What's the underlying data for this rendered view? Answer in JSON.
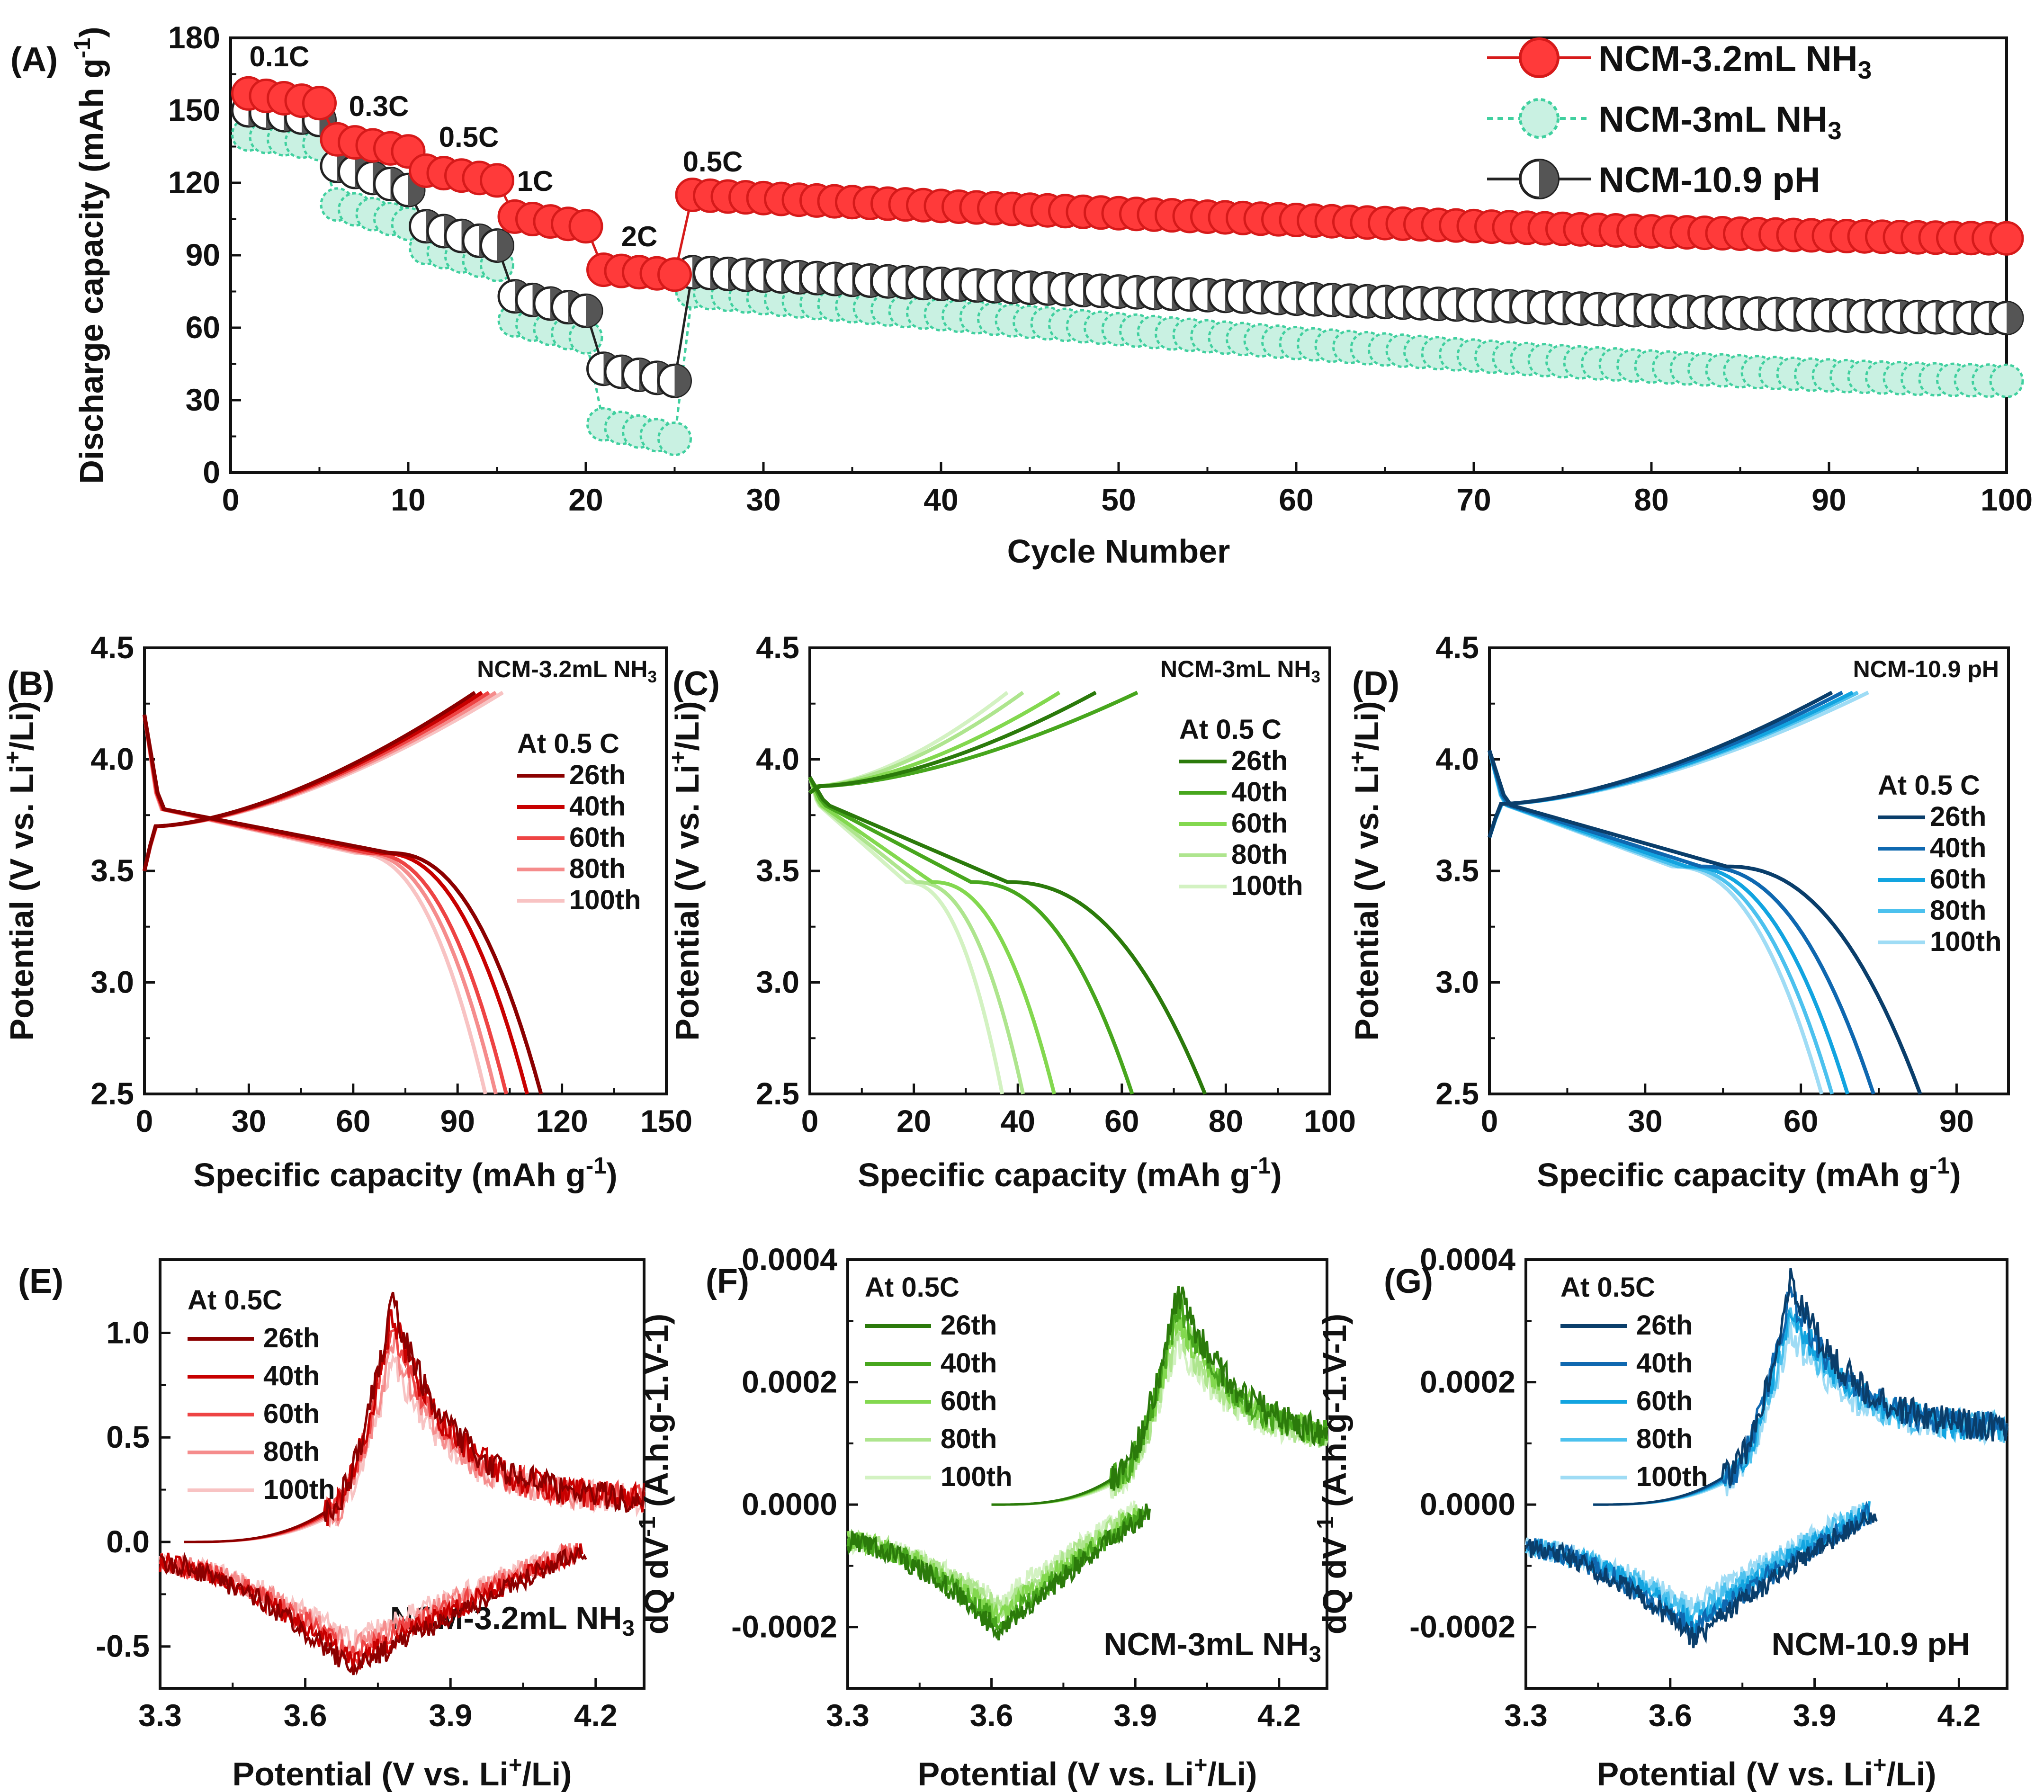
{
  "colors": {
    "red": [
      "#8b0000",
      "#c80000",
      "#ee4444",
      "#f58c8c",
      "#f8c3c3"
    ],
    "green": [
      "#2b7a0b",
      "#47a61d",
      "#83d84f",
      "#aee58e",
      "#d3f2c2"
    ],
    "blue": [
      "#0a3e6b",
      "#0f68b0",
      "#12a4e0",
      "#4cc1ee",
      "#9fdcf5"
    ],
    "panelA": {
      "s1": "#ff3a3a",
      "s1_edge": "#d61a1a",
      "s2": "#40d09f",
      "s3": "#555555"
    }
  },
  "chart_data": [
    {
      "id": "A",
      "panel_label": "(A)",
      "type": "scatter-line",
      "xlabel": "Cycle Number",
      "ylabel": "Discharge capacity (mAh g",
      "ylabel_sup": "-1",
      "ylabel_end": ")",
      "xlim": [
        0,
        100
      ],
      "ylim": [
        0,
        180
      ],
      "xticks": [
        "0",
        "10",
        "20",
        "30",
        "40",
        "50",
        "60",
        "70",
        "80",
        "90",
        "100"
      ],
      "yticks": [
        "0",
        "30",
        "60",
        "90",
        "120",
        "150",
        "180"
      ],
      "rate_labels": [
        "0.1C",
        "0.3C",
        "0.5C",
        "1C",
        "2C",
        "0.5C"
      ],
      "series": [
        {
          "name": "NCM-3.2mL NH",
          "name_sub": "3",
          "style": "filled",
          "rate_segments": [
            [
              157,
              153
            ],
            [
              138,
              133
            ],
            [
              125,
              121
            ],
            [
              106,
              102
            ],
            [
              84,
              82
            ]
          ],
          "tail": [
            115,
            97
          ]
        },
        {
          "name": "NCM-3mL NH",
          "name_sub": "3",
          "style": "hatched",
          "rate_segments": [
            [
              140,
              136
            ],
            [
              111,
              103
            ],
            [
              93,
              86
            ],
            [
              63,
              56
            ],
            [
              20,
              14
            ]
          ],
          "tail": [
            75,
            38
          ]
        },
        {
          "name": "NCM-10.9 pH",
          "name_sub": "",
          "style": "half",
          "rate_segments": [
            [
              150,
              146
            ],
            [
              127,
              117
            ],
            [
              102,
              94
            ],
            [
              73,
              67
            ],
            [
              43,
              38
            ]
          ],
          "tail": [
            83,
            64
          ]
        }
      ]
    },
    {
      "id": "B",
      "panel_label": "(B)",
      "type": "line",
      "title": "NCM-3.2mL NH",
      "title_sub": "3",
      "xlabel": "Specific capacity (mAh g",
      "xlabel_sup": "-1",
      "xlabel_end": ")",
      "ylabel": "Potential (V vs. Li",
      "ylabel_sup": "+",
      "ylabel_end": "/Li)",
      "xlim": [
        0,
        150
      ],
      "ylim": [
        2.5,
        4.5
      ],
      "xticks": [
        "0",
        "30",
        "60",
        "90",
        "120",
        "150"
      ],
      "yticks": [
        "2.5",
        "3.0",
        "3.5",
        "4.0",
        "4.5"
      ],
      "legend_title": "At 0.5 C",
      "series": [
        {
          "name": "26th",
          "charge_cap": 95,
          "discharge_cap": 114
        },
        {
          "name": "40th",
          "charge_cap": 97,
          "discharge_cap": 110
        },
        {
          "name": "60th",
          "charge_cap": 99,
          "discharge_cap": 104
        },
        {
          "name": "80th",
          "charge_cap": 101,
          "discharge_cap": 101
        },
        {
          "name": "100th",
          "charge_cap": 103,
          "discharge_cap": 98
        }
      ]
    },
    {
      "id": "C",
      "panel_label": "(C)",
      "type": "line",
      "title": "NCM-3mL NH",
      "title_sub": "3",
      "xlabel": "Specific capacity (mAh g",
      "xlabel_sup": "-1",
      "xlabel_end": ")",
      "ylabel": "Potential (V vs. Li",
      "ylabel_sup": "+",
      "ylabel_end": "/Li)",
      "xlim": [
        0,
        100
      ],
      "ylim": [
        2.5,
        4.5
      ],
      "xticks": [
        "0",
        "20",
        "40",
        "60",
        "80",
        "100"
      ],
      "yticks": [
        "2.5",
        "3.0",
        "3.5",
        "4.0",
        "4.5"
      ],
      "legend_title": "At 0.5 C",
      "series": [
        {
          "name": "26th",
          "charge_cap": 55,
          "discharge_cap": 76
        },
        {
          "name": "40th",
          "charge_cap": 63,
          "discharge_cap": 62
        },
        {
          "name": "60th",
          "charge_cap": 48,
          "discharge_cap": 47
        },
        {
          "name": "80th",
          "charge_cap": 41,
          "discharge_cap": 41
        },
        {
          "name": "100th",
          "charge_cap": 38,
          "discharge_cap": 37
        }
      ]
    },
    {
      "id": "D",
      "panel_label": "(D)",
      "type": "line",
      "title": "NCM-10.9 pH",
      "title_sub": "",
      "xlabel": "Specific capacity (mAh g",
      "xlabel_sup": "-1",
      "xlabel_end": ")",
      "ylabel": "Potential (V vs. Li",
      "ylabel_sup": "+",
      "ylabel_end": "/Li)",
      "xlim": [
        0,
        100
      ],
      "ylim": [
        2.5,
        4.5
      ],
      "xticks": [
        "0",
        "30",
        "60",
        "90"
      ],
      "yticks": [
        "2.5",
        "3.0",
        "3.5",
        "4.0",
        "4.5"
      ],
      "legend_title": "At 0.5 C",
      "series": [
        {
          "name": "26th",
          "charge_cap": 66,
          "discharge_cap": 83
        },
        {
          "name": "40th",
          "charge_cap": 68,
          "discharge_cap": 74
        },
        {
          "name": "60th",
          "charge_cap": 70,
          "discharge_cap": 69
        },
        {
          "name": "80th",
          "charge_cap": 71,
          "discharge_cap": 66
        },
        {
          "name": "100th",
          "charge_cap": 73,
          "discharge_cap": 64
        }
      ]
    },
    {
      "id": "E",
      "panel_label": "(E)",
      "type": "line",
      "tag": "NCM-3.2mL NH",
      "tag_sub": "3",
      "xlabel": "Potential (V vs. Li",
      "xlabel_sup": "+",
      "xlabel_end": "/Li)",
      "ylabel": "dQ dV",
      "ylabel_sup": "-1",
      "ylabel_end": " (A.h.g-1.V-1)",
      "xlim": [
        3.3,
        4.3
      ],
      "ylim": [
        -0.7,
        1.35
      ],
      "xticks": [
        "3.3",
        "3.6",
        "3.9",
        "4.2"
      ],
      "yticks": [
        "-0.5",
        "0.0",
        "0.5",
        "1.0"
      ],
      "legend_title": "At 0.5C",
      "series_names": [
        "26th",
        "40th",
        "60th",
        "80th",
        "100th"
      ],
      "charge_onset": 3.35,
      "charge_peak": [
        3.78,
        1.16
      ],
      "charge_end": [
        4.3,
        0.2
      ],
      "discharge_start": [
        3.3,
        -0.1
      ],
      "discharge_min": [
        3.7,
        -0.62
      ],
      "discharge_end": [
        4.18,
        -0.04
      ]
    },
    {
      "id": "F",
      "panel_label": "(F)",
      "type": "line",
      "tag": "NCM-3mL NH",
      "tag_sub": "3",
      "xlabel": "Potential (V vs. Li",
      "xlabel_sup": "+",
      "xlabel_end": "/Li)",
      "ylabel": "dQ dV",
      "ylabel_sup": "-1",
      "ylabel_end": " (A.h.g-1.V-1)",
      "xlim": [
        3.3,
        4.3
      ],
      "ylim": [
        -0.0003,
        0.0004
      ],
      "xticks": [
        "3.3",
        "3.6",
        "3.9",
        "4.2"
      ],
      "yticks": [
        "-0.0002",
        "0.0000",
        "0.0002",
        "0.0004"
      ],
      "legend_title": "At 0.5C",
      "series_names": [
        "26th",
        "40th",
        "60th",
        "80th",
        "100th"
      ],
      "charge_onset": 3.6,
      "charge_peak": [
        3.99,
        0.00035
      ],
      "charge_end": [
        4.3,
        0.0001
      ],
      "discharge_start": [
        3.3,
        -6e-05
      ],
      "discharge_min": [
        3.62,
        -0.00021
      ],
      "discharge_end": [
        3.93,
        -1e-05
      ]
    },
    {
      "id": "G",
      "panel_label": "(G)",
      "type": "line",
      "tag": "NCM-10.9 pH",
      "tag_sub": "",
      "xlabel": "Potential (V vs. Li",
      "xlabel_sup": "+",
      "xlabel_end": "/Li)",
      "ylabel": "dQ dV",
      "ylabel_sup": "-1",
      "ylabel_end": " (A.h.g-1.V-1)",
      "xlim": [
        3.3,
        4.3
      ],
      "ylim": [
        -0.0003,
        0.0004
      ],
      "xticks": [
        "3.3",
        "3.6",
        "3.9",
        "4.2"
      ],
      "yticks": [
        "-0.0002",
        "0.0000",
        "0.0002",
        "0.0004"
      ],
      "legend_title": "At 0.5C",
      "series_names": [
        "26th",
        "40th",
        "60th",
        "80th",
        "100th"
      ],
      "charge_onset": 3.44,
      "charge_peak": [
        3.85,
        0.00037
      ],
      "charge_end": [
        4.3,
        0.00012
      ],
      "discharge_start": [
        3.3,
        -7e-05
      ],
      "discharge_min": [
        3.65,
        -0.00022
      ],
      "discharge_end": [
        4.03,
        -1e-05
      ]
    }
  ]
}
